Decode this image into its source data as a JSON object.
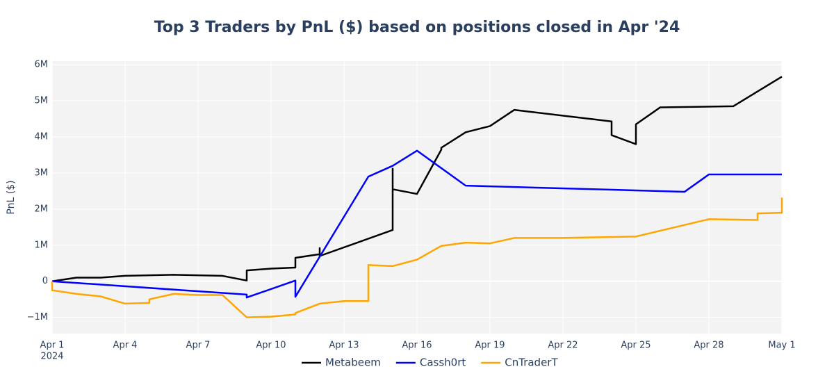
{
  "chart_data": {
    "type": "line",
    "title": "Top 3 Traders by PnL ($) based on positions closed in Apr '24",
    "y_label": "PnL ($)",
    "xlim": [
      "2024-04-01",
      "2024-05-01"
    ],
    "xticks": [
      {
        "value": "2024-04-01",
        "label": "Apr 1"
      },
      {
        "value": "2024-04-04",
        "label": "Apr 4"
      },
      {
        "value": "2024-04-07",
        "label": "Apr 7"
      },
      {
        "value": "2024-04-10",
        "label": "Apr 10"
      },
      {
        "value": "2024-04-13",
        "label": "Apr 13"
      },
      {
        "value": "2024-04-16",
        "label": "Apr 16"
      },
      {
        "value": "2024-04-19",
        "label": "Apr 19"
      },
      {
        "value": "2024-04-22",
        "label": "Apr 22"
      },
      {
        "value": "2024-04-25",
        "label": "Apr 25"
      },
      {
        "value": "2024-04-28",
        "label": "Apr 28"
      },
      {
        "value": "2024-05-01",
        "label": "May 1"
      }
    ],
    "xtick_year": "2024",
    "ylim": [
      -1450000,
      6100000
    ],
    "yticks": [
      {
        "value": -1000000,
        "label": "−1M"
      },
      0,
      {
        "value": 1000000,
        "label": "1M"
      },
      {
        "value": 2000000,
        "label": "2M"
      },
      {
        "value": 3000000,
        "label": "3M"
      },
      {
        "value": 4000000,
        "label": "4M"
      },
      {
        "value": 5000000,
        "label": "5M"
      },
      {
        "value": 6000000,
        "label": "6M"
      }
    ],
    "grid": true,
    "legend": "bottom",
    "series": [
      {
        "name": "Metabeem",
        "color": "#000000",
        "x": [
          "2024-04-01",
          "2024-04-02",
          "2024-04-03",
          "2024-04-04",
          "2024-04-06",
          "2024-04-08",
          "2024-04-09",
          "2024-04-09",
          "2024-04-10",
          "2024-04-11",
          "2024-04-11",
          "2024-04-12",
          "2024-04-12",
          "2024-04-12",
          "2024-04-15",
          "2024-04-15",
          "2024-04-15",
          "2024-04-16",
          "2024-04-17",
          "2024-04-17",
          "2024-04-18",
          "2024-04-19",
          "2024-04-20",
          "2024-04-24",
          "2024-04-24",
          "2024-04-25",
          "2024-04-25",
          "2024-04-26",
          "2024-04-29",
          "2024-05-01"
        ],
        "values": [
          0,
          100000,
          100000,
          150000,
          180000,
          150000,
          20000,
          300000,
          350000,
          380000,
          650000,
          750000,
          920000,
          700000,
          1420000,
          3120000,
          2550000,
          2420000,
          3650000,
          3700000,
          4130000,
          4300000,
          4750000,
          4430000,
          4050000,
          3800000,
          4350000,
          4820000,
          4850000,
          5670000
        ]
      },
      {
        "name": "Cassh0rt",
        "color": "#0000ff",
        "x": [
          "2024-04-01",
          "2024-04-09",
          "2024-04-09",
          "2024-04-11",
          "2024-04-11",
          "2024-04-14",
          "2024-04-15",
          "2024-04-16",
          "2024-04-18",
          "2024-04-27",
          "2024-04-28",
          "2024-05-01"
        ],
        "values": [
          0,
          -370000,
          -450000,
          20000,
          -430000,
          2900000,
          3200000,
          3620000,
          2650000,
          2480000,
          2960000,
          2960000
        ]
      },
      {
        "name": "CnTraderT",
        "color": "#ffa500",
        "x": [
          "2024-04-01",
          "2024-04-01",
          "2024-04-02",
          "2024-04-03",
          "2024-04-04",
          "2024-04-05",
          "2024-04-05",
          "2024-04-06",
          "2024-04-07",
          "2024-04-08",
          "2024-04-09",
          "2024-04-10",
          "2024-04-11",
          "2024-04-11",
          "2024-04-12",
          "2024-04-13",
          "2024-04-14",
          "2024-04-14",
          "2024-04-14",
          "2024-04-15",
          "2024-04-16",
          "2024-04-17",
          "2024-04-18",
          "2024-04-19",
          "2024-04-20",
          "2024-04-22",
          "2024-04-25",
          "2024-04-28",
          "2024-04-30",
          "2024-04-30",
          "2024-05-01",
          "2024-05-01"
        ],
        "values": [
          0,
          -250000,
          -350000,
          -420000,
          -620000,
          -600000,
          -500000,
          -350000,
          -380000,
          -380000,
          -1000000,
          -980000,
          -920000,
          -880000,
          -620000,
          -550000,
          -550000,
          300000,
          450000,
          420000,
          600000,
          980000,
          1070000,
          1050000,
          1200000,
          1200000,
          1240000,
          1720000,
          1700000,
          1880000,
          1900000,
          2320000
        ]
      }
    ]
  }
}
